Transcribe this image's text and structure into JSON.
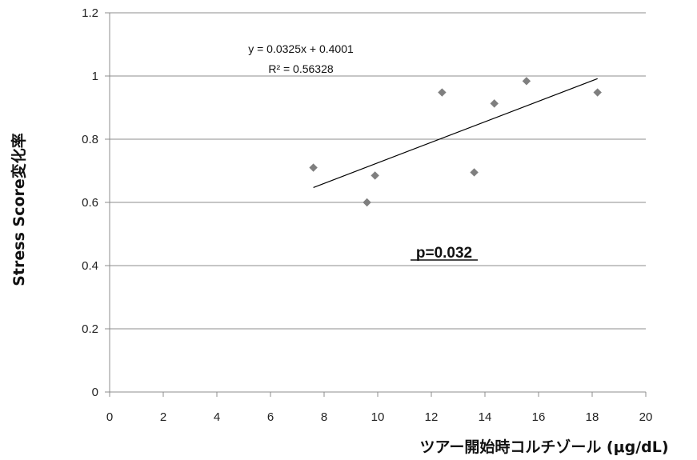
{
  "chart_data": {
    "type": "scatter",
    "title": "",
    "xlabel": "ツアー開始時コルチゾール (μg/dL)",
    "ylabel": "Stress Score変化率",
    "xlim": [
      0,
      20
    ],
    "ylim": [
      0,
      1.2
    ],
    "x_ticks": [
      "0",
      "2",
      "4",
      "6",
      "8",
      "10",
      "12",
      "14",
      "16",
      "18",
      "20"
    ],
    "y_ticks": [
      "0",
      "0.2",
      "0.4",
      "0.6",
      "0.8",
      "1",
      "1.2"
    ],
    "grid": "horizontal",
    "legend": "none",
    "points": [
      {
        "x": 7.6,
        "y": 0.71
      },
      {
        "x": 9.6,
        "y": 0.6
      },
      {
        "x": 9.9,
        "y": 0.685
      },
      {
        "x": 12.4,
        "y": 0.948
      },
      {
        "x": 13.6,
        "y": 0.695
      },
      {
        "x": 14.35,
        "y": 0.913
      },
      {
        "x": 15.55,
        "y": 0.984
      },
      {
        "x": 18.2,
        "y": 0.948
      }
    ],
    "trendline": {
      "type": "linear",
      "slope": 0.0325,
      "intercept": 0.4001,
      "x_range": [
        7.6,
        18.2
      ],
      "equation": "y = 0.0325x + 0.4001",
      "r2": "R² = 0.56328"
    },
    "annotations": {
      "p_value": "p=0.032"
    },
    "colors": {
      "point": "#7f7f7f",
      "trendline": "#000000",
      "grid": "#8c8c8c",
      "axis": "#8c8c8c"
    }
  }
}
